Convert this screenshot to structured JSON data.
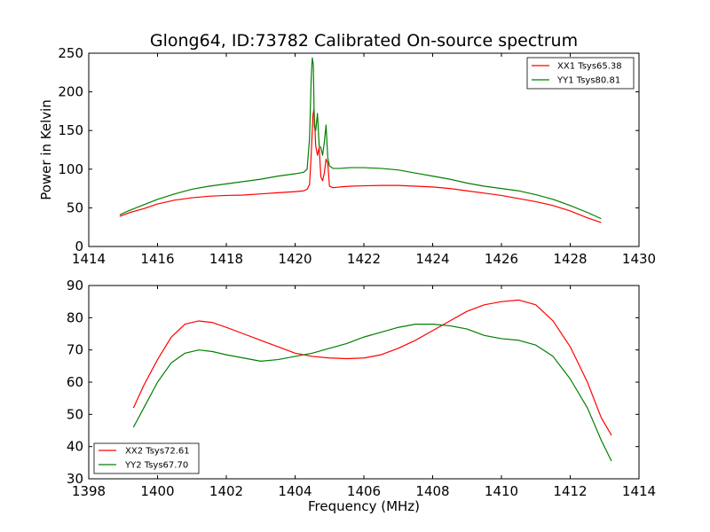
{
  "figure": {
    "title": "Glong64, ID:73782 Calibrated On-source spectrum",
    "colors": {
      "red": "#ff0000",
      "green": "#008000"
    }
  },
  "chart_data": [
    {
      "type": "line",
      "title": "Glong64, ID:73782 Calibrated On-source spectrum",
      "xlabel": "",
      "ylabel": "Power in Kelvin",
      "xlim": [
        1414,
        1430
      ],
      "ylim": [
        0,
        250
      ],
      "xticks": [
        1414,
        1416,
        1418,
        1420,
        1422,
        1424,
        1426,
        1428,
        1430
      ],
      "yticks": [
        0,
        50,
        100,
        150,
        200,
        250
      ],
      "grid": false,
      "legend_position": "top-right",
      "series": [
        {
          "name": "XX1 Tsys65.38",
          "color": "#ff0000",
          "x": [
            1414.9,
            1415.2,
            1415.6,
            1416.0,
            1416.5,
            1417.0,
            1417.5,
            1418.0,
            1418.5,
            1419.0,
            1419.5,
            1420.0,
            1420.25,
            1420.35,
            1420.42,
            1420.47,
            1420.52,
            1420.55,
            1420.6,
            1420.65,
            1420.7,
            1420.75,
            1420.8,
            1420.85,
            1420.9,
            1420.95,
            1421.0,
            1421.1,
            1421.3,
            1421.6,
            1422.0,
            1422.5,
            1423.0,
            1423.5,
            1424.0,
            1424.5,
            1425.0,
            1425.5,
            1426.0,
            1426.5,
            1427.0,
            1427.5,
            1428.0,
            1428.5,
            1428.9
          ],
          "y": [
            39,
            44,
            49,
            55,
            60,
            63,
            65,
            66,
            66.5,
            68,
            69.5,
            71,
            72,
            74,
            80,
            120,
            170,
            178,
            130,
            118,
            128,
            90,
            85,
            95,
            113,
            108,
            78,
            76,
            77,
            78,
            78.5,
            79,
            79,
            78,
            77,
            75,
            72,
            69,
            66,
            62,
            58,
            53,
            46,
            37,
            31
          ]
        },
        {
          "name": "YY1 Tsys80.81",
          "color": "#008000",
          "x": [
            1414.9,
            1415.2,
            1415.6,
            1416.0,
            1416.5,
            1417.0,
            1417.5,
            1418.0,
            1418.5,
            1419.0,
            1419.5,
            1420.0,
            1420.25,
            1420.35,
            1420.42,
            1420.47,
            1420.5,
            1420.53,
            1420.56,
            1420.6,
            1420.65,
            1420.7,
            1420.75,
            1420.8,
            1420.85,
            1420.9,
            1420.95,
            1421.0,
            1421.1,
            1421.3,
            1421.6,
            1422.0,
            1422.5,
            1423.0,
            1423.5,
            1424.0,
            1424.5,
            1425.0,
            1425.5,
            1426.0,
            1426.5,
            1427.0,
            1427.5,
            1428.0,
            1428.5,
            1428.9
          ],
          "y": [
            41,
            47,
            54,
            61,
            68,
            74,
            78,
            81,
            84,
            87,
            91,
            94,
            96,
            100,
            140,
            220,
            244,
            235,
            155,
            150,
            172,
            130,
            128,
            118,
            135,
            157,
            115,
            104,
            101,
            101,
            102,
            102,
            101,
            99,
            95,
            91,
            87,
            82,
            78,
            75,
            72,
            67,
            61,
            53,
            44,
            36
          ]
        }
      ]
    },
    {
      "type": "line",
      "title": "",
      "xlabel": "Frequency (MHz)",
      "ylabel": "",
      "xlim": [
        1398,
        1414
      ],
      "ylim": [
        30,
        90
      ],
      "xticks": [
        1398,
        1400,
        1402,
        1404,
        1406,
        1408,
        1410,
        1412,
        1414
      ],
      "yticks": [
        30,
        40,
        50,
        60,
        70,
        80,
        90
      ],
      "grid": false,
      "legend_position": "bottom-left",
      "series": [
        {
          "name": "XX2 Tsys72.61",
          "color": "#ff0000",
          "x": [
            1399.3,
            1399.6,
            1400.0,
            1400.4,
            1400.8,
            1401.2,
            1401.6,
            1402.0,
            1402.5,
            1403.0,
            1403.5,
            1404.0,
            1404.5,
            1405.0,
            1405.5,
            1406.0,
            1406.5,
            1407.0,
            1407.5,
            1408.0,
            1408.5,
            1409.0,
            1409.5,
            1410.0,
            1410.5,
            1411.0,
            1411.5,
            1412.0,
            1412.5,
            1412.9,
            1413.2
          ],
          "y": [
            52,
            59,
            67,
            74,
            78,
            79,
            78.5,
            77,
            75,
            73,
            71,
            69,
            68,
            67.5,
            67.3,
            67.5,
            68.5,
            70.5,
            73,
            76,
            79,
            82,
            84,
            85,
            85.5,
            84,
            79,
            71,
            60,
            49,
            43.5
          ]
        },
        {
          "name": "YY2 Tsys67.70",
          "color": "#008000",
          "x": [
            1399.3,
            1399.6,
            1400.0,
            1400.4,
            1400.8,
            1401.2,
            1401.6,
            1402.0,
            1402.5,
            1403.0,
            1403.5,
            1404.0,
            1404.5,
            1405.0,
            1405.5,
            1406.0,
            1406.5,
            1407.0,
            1407.5,
            1408.0,
            1408.5,
            1409.0,
            1409.5,
            1410.0,
            1410.5,
            1411.0,
            1411.5,
            1412.0,
            1412.5,
            1412.9,
            1413.2
          ],
          "y": [
            46,
            52,
            60,
            66,
            69,
            70,
            69.5,
            68.5,
            67.5,
            66.5,
            67,
            68,
            69,
            70.5,
            72,
            74,
            75.5,
            77,
            78,
            78,
            77.5,
            76.5,
            74.5,
            73.5,
            73,
            71.5,
            68,
            61,
            52,
            42,
            35.5
          ]
        }
      ]
    }
  ]
}
